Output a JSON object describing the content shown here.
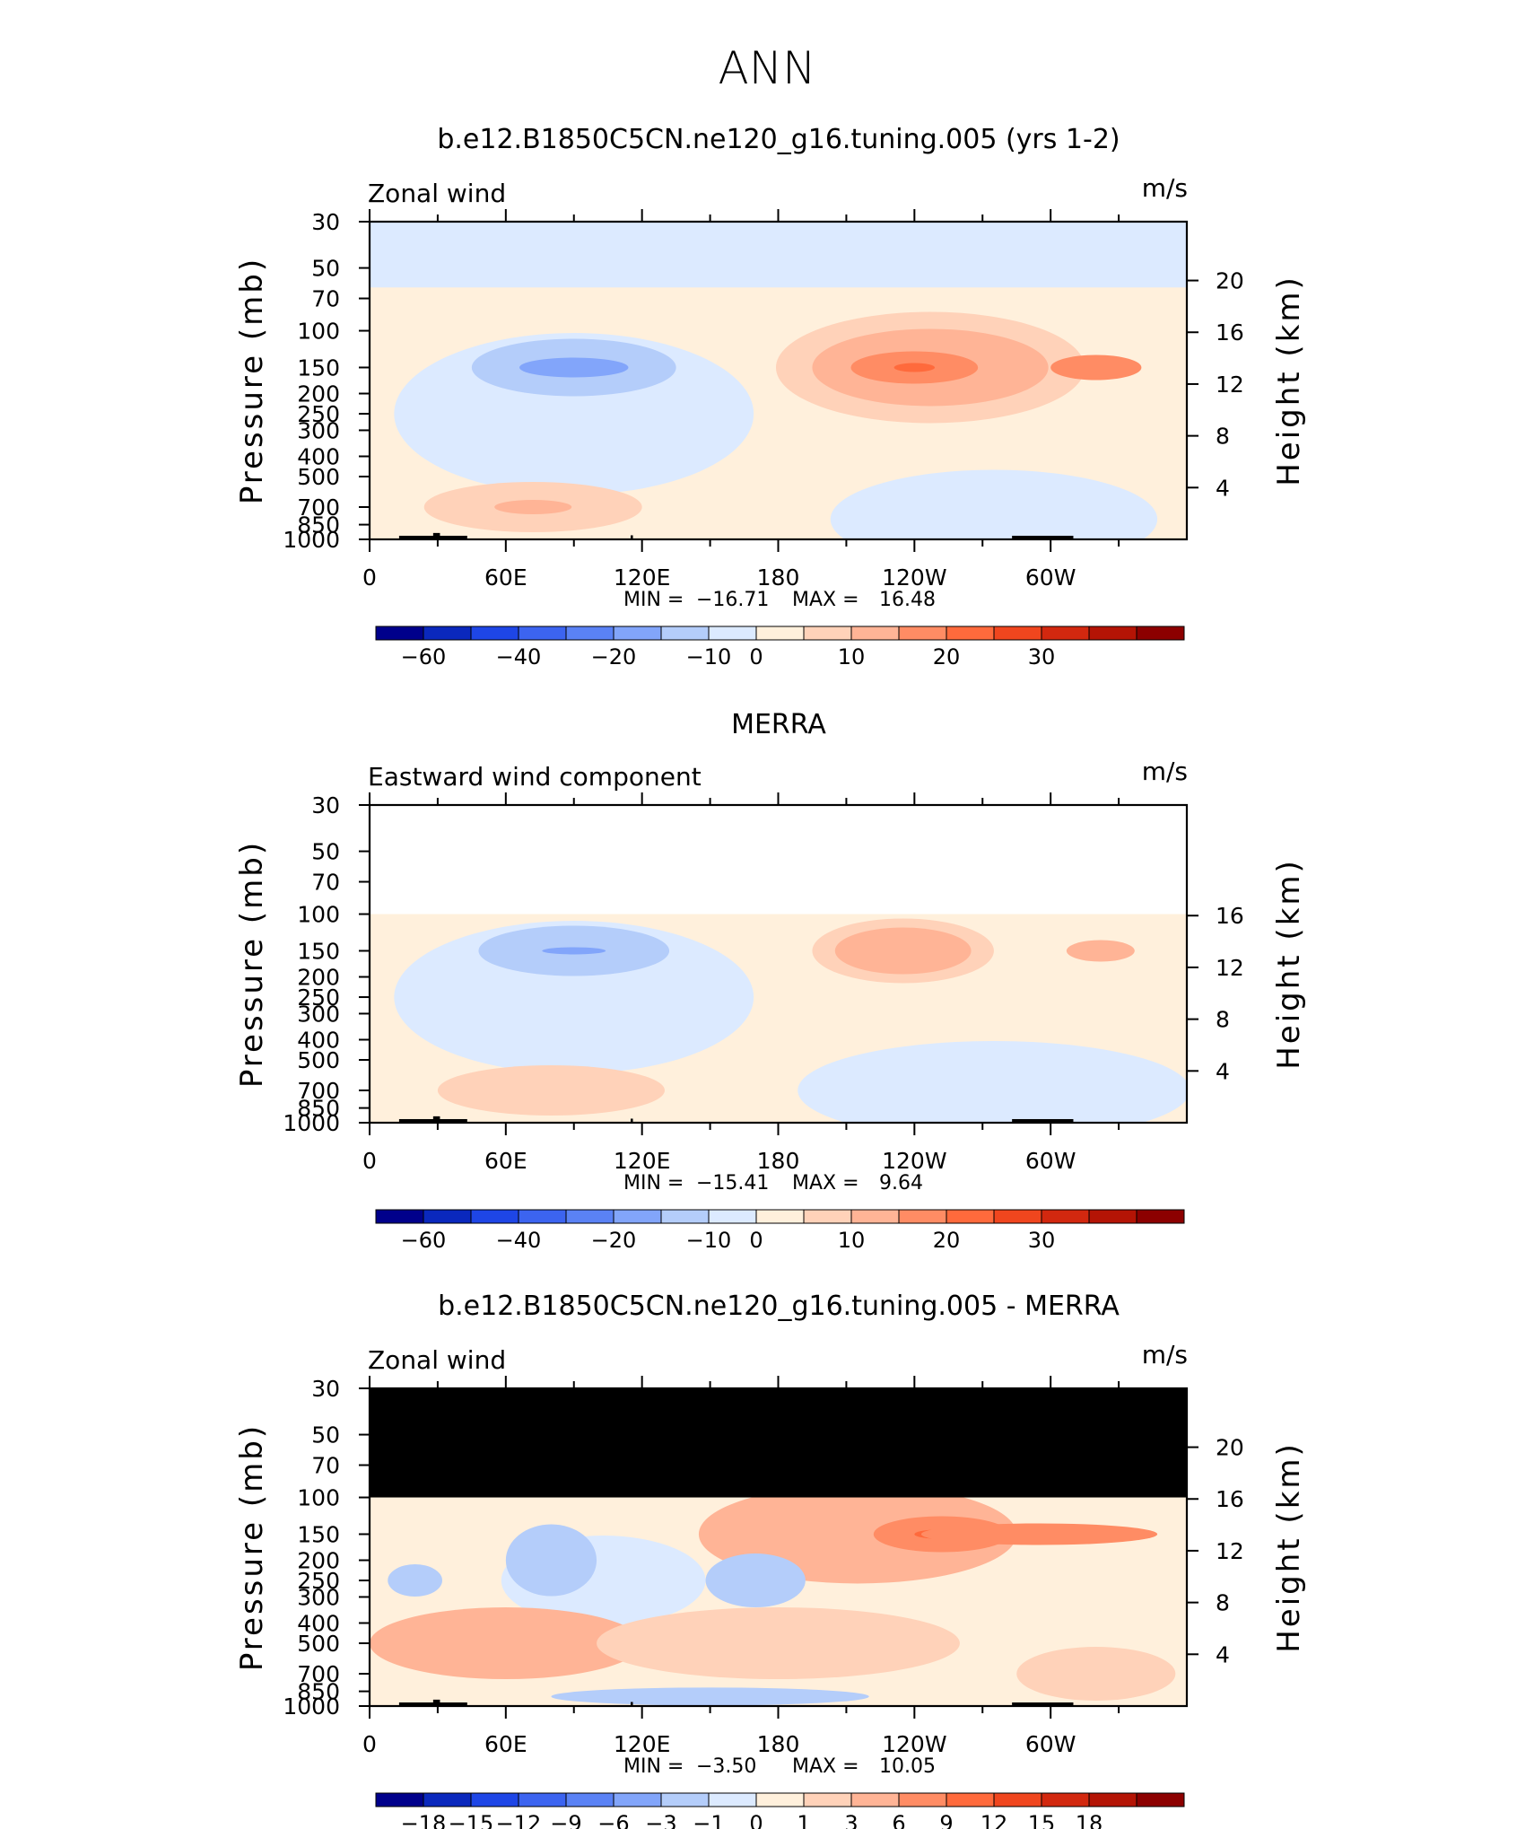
{
  "page": {
    "title": "ANN"
  },
  "axes": {
    "pressure_label": "Pressure (mb)",
    "height_label": "Height (km)",
    "pressure_ticks": [
      "30",
      "50",
      "70",
      "100",
      "150",
      "200",
      "250",
      "300",
      "400",
      "500",
      "700",
      "850",
      "1000"
    ],
    "lon_ticks": [
      "0",
      "60E",
      "120E",
      "180",
      "120W",
      "60W"
    ],
    "min_label": "MIN =",
    "max_label": "MAX ="
  },
  "chart_data": [
    {
      "type": "heatmap",
      "title": "b.e12.B1850C5CN.ne120_g16.tuning.005 (yrs 1-2)",
      "variable": "Zonal wind",
      "units": "m/s",
      "min": "−16.71",
      "max": "16.48",
      "height_ticks": [
        "20",
        "16",
        "12",
        "8",
        "4"
      ],
      "colorbar": [
        "−60",
        "−40",
        "−20",
        "−10",
        "0",
        "10",
        "20",
        "30"
      ],
      "colorbar_colors": [
        "#00008b",
        "#0a28bd",
        "#1e46e6",
        "#3c64f0",
        "#5a82f5",
        "#82a5fa",
        "#b4cdfa",
        "#dceaff",
        "#fff0dc",
        "#ffd2b9",
        "#ffb496",
        "#ff8c64",
        "#ff6a3c",
        "#f0461e",
        "#d2280f",
        "#b41405",
        "#8c0000"
      ],
      "blobs": [
        {
          "lon": 90,
          "p": 150,
          "rx": 45,
          "ry": 32,
          "color": "#b4cdfa"
        },
        {
          "lon": 90,
          "p": 150,
          "rx": 24,
          "ry": 11,
          "color": "#82a5fa"
        },
        {
          "lon": 247,
          "p": 150,
          "rx": 68,
          "ry": 62,
          "color": "#ffd2b9"
        },
        {
          "lon": 247,
          "p": 150,
          "rx": 52,
          "ry": 43,
          "color": "#ffb496"
        },
        {
          "lon": 240,
          "p": 150,
          "rx": 28,
          "ry": 18,
          "color": "#ff8c64"
        },
        {
          "lon": 240,
          "p": 150,
          "rx": 9,
          "ry": 5,
          "color": "#ff6a3c"
        },
        {
          "lon": 320,
          "p": 150,
          "rx": 20,
          "ry": 14,
          "color": "#ff8c64"
        },
        {
          "lon": 72,
          "p": 700,
          "rx": 48,
          "ry": 28,
          "color": "#ffd2b9"
        },
        {
          "lon": 72,
          "p": 700,
          "rx": 17,
          "ry": 8,
          "color": "#ffb496"
        }
      ]
    },
    {
      "type": "heatmap",
      "title": "MERRA",
      "variable": "Eastward wind component",
      "units": "m/s",
      "min": "−15.41",
      "max": "9.64",
      "height_ticks": [
        "16",
        "12",
        "8",
        "4"
      ],
      "colorbar": [
        "−60",
        "−40",
        "−20",
        "−10",
        "0",
        "10",
        "20",
        "30"
      ],
      "colorbar_colors": [
        "#00008b",
        "#0a28bd",
        "#1e46e6",
        "#3c64f0",
        "#5a82f5",
        "#82a5fa",
        "#b4cdfa",
        "#dceaff",
        "#fff0dc",
        "#ffd2b9",
        "#ffb496",
        "#ff8c64",
        "#ff6a3c",
        "#f0461e",
        "#d2280f",
        "#b41405",
        "#8c0000"
      ],
      "blobs": [
        {
          "lon": 90,
          "p": 150,
          "rx": 42,
          "ry": 28,
          "color": "#b4cdfa"
        },
        {
          "lon": 90,
          "p": 150,
          "rx": 14,
          "ry": 4,
          "color": "#82a5fa"
        },
        {
          "lon": 235,
          "p": 150,
          "rx": 40,
          "ry": 36,
          "color": "#ffd2b9"
        },
        {
          "lon": 235,
          "p": 150,
          "rx": 30,
          "ry": 26,
          "color": "#ffb496"
        },
        {
          "lon": 322,
          "p": 150,
          "rx": 15,
          "ry": 12,
          "color": "#ffb496"
        },
        {
          "lon": 80,
          "p": 700,
          "rx": 50,
          "ry": 28,
          "color": "#ffd2b9"
        }
      ]
    },
    {
      "type": "heatmap",
      "title": "b.e12.B1850C5CN.ne120_g16.tuning.005 - MERRA",
      "variable": "Zonal wind",
      "units": "m/s",
      "min": "−3.50",
      "max": "10.05",
      "height_ticks": [
        "20",
        "16",
        "12",
        "8",
        "4"
      ],
      "colorbar": [
        "−18",
        "−15",
        "−12",
        "−9",
        "−6",
        "−3",
        "−1",
        "0",
        "1",
        "3",
        "6",
        "9",
        "12",
        "15",
        "18"
      ],
      "colorbar_colors": [
        "#00008b",
        "#0a28bd",
        "#1e46e6",
        "#3c64f0",
        "#5a82f5",
        "#82a5fa",
        "#b4cdfa",
        "#dceaff",
        "#fff0dc",
        "#ffd2b9",
        "#ffb496",
        "#ff8c64",
        "#ff6a3c",
        "#f0461e",
        "#d2280f",
        "#b41405",
        "#8c0000"
      ],
      "blobs": [
        {
          "lon": 215,
          "p": 150,
          "rx": 70,
          "ry": 55,
          "color": "#ffb496"
        },
        {
          "lon": 252,
          "p": 150,
          "rx": 30,
          "ry": 20,
          "color": "#ff8c64"
        },
        {
          "lon": 250,
          "p": 150,
          "rx": 10,
          "ry": 5,
          "color": "#ff6a3c"
        },
        {
          "lon": 295,
          "p": 150,
          "rx": 52,
          "ry": 12,
          "color": "#ff8c64"
        },
        {
          "lon": 103,
          "p": 250,
          "rx": 45,
          "ry": 50,
          "color": "#dceaff"
        },
        {
          "lon": 80,
          "p": 200,
          "rx": 20,
          "ry": 40,
          "color": "#b4cdfa"
        },
        {
          "lon": 170,
          "p": 250,
          "rx": 22,
          "ry": 30,
          "color": "#b4cdfa"
        },
        {
          "lon": 20,
          "p": 250,
          "rx": 12,
          "ry": 18,
          "color": "#b4cdfa"
        },
        {
          "lon": 60,
          "p": 500,
          "rx": 60,
          "ry": 40,
          "color": "#ffb496"
        },
        {
          "lon": 180,
          "p": 500,
          "rx": 80,
          "ry": 40,
          "color": "#ffd2b9"
        },
        {
          "lon": 150,
          "p": 900,
          "rx": 70,
          "ry": 10,
          "color": "#b4cdfa"
        },
        {
          "lon": 320,
          "p": 700,
          "rx": 35,
          "ry": 30,
          "color": "#ffd2b9"
        }
      ]
    }
  ]
}
